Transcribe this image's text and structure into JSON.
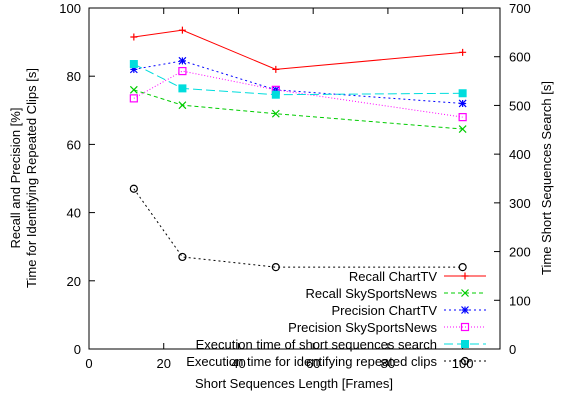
{
  "chart_data": {
    "type": "line",
    "title": "",
    "xlabel": "Short Sequences Length [Frames]",
    "ylabel_left": [
      "Recall and Precision [%]",
      "Time for Identifying Repeated Clips [s]"
    ],
    "ylabel_right": "Time Short Sequences Search [s]",
    "xlim": [
      0,
      110
    ],
    "ylim_left": [
      0,
      100
    ],
    "ylim_right": [
      0,
      700
    ],
    "x_ticks": [
      0,
      20,
      40,
      60,
      80,
      100
    ],
    "y_ticks_left": [
      0,
      20,
      40,
      60,
      80,
      100
    ],
    "y_ticks_right": [
      0,
      100,
      200,
      300,
      400,
      500,
      600,
      700
    ],
    "x_tick_labels": [
      "0",
      "20",
      "40",
      "60",
      "80",
      "100"
    ],
    "y_tick_labels_left": [
      "0",
      "20",
      "40",
      "60",
      "80",
      "100"
    ],
    "y_tick_labels_right": [
      "0",
      "100",
      "200",
      "300",
      "400",
      "500",
      "600",
      "700"
    ],
    "grid": false,
    "legend_position": "bottom-right",
    "series": [
      {
        "name": "Recall ChartTV",
        "axis": "left",
        "x": [
          12,
          25,
          50,
          100
        ],
        "values": [
          91.5,
          93.5,
          82,
          87
        ],
        "color": "#ff0000",
        "marker": "plus",
        "dash": ""
      },
      {
        "name": "Recall SkySportsNews",
        "axis": "left",
        "x": [
          12,
          25,
          50,
          100
        ],
        "values": [
          76,
          71.5,
          69,
          64.5
        ],
        "color": "#00cc00",
        "marker": "x",
        "dash": "4,3"
      },
      {
        "name": "Precision ChartTV",
        "axis": "left",
        "x": [
          12,
          25,
          50,
          100
        ],
        "values": [
          82,
          84.5,
          76,
          72
        ],
        "color": "#0000ff",
        "marker": "star",
        "dash": "2,3"
      },
      {
        "name": "Precision SkySportsNews",
        "axis": "left",
        "x": [
          12,
          25,
          50,
          100
        ],
        "values": [
          73.5,
          81.5,
          76,
          68
        ],
        "color": "#ff00ff",
        "marker": "square-open",
        "dash": "1,2"
      },
      {
        "name": "Execution time of short sequences search",
        "axis": "right",
        "x": [
          12,
          25,
          50,
          100
        ],
        "values": [
          585,
          535,
          522,
          525
        ],
        "color": "#00dddd",
        "marker": "square-filled",
        "dash": "9,4"
      },
      {
        "name": "Execution time for identifying repeated clips",
        "axis": "left",
        "x": [
          12,
          25,
          50,
          100
        ],
        "values": [
          47,
          27,
          24,
          24
        ],
        "color": "#000000",
        "marker": "circle-open",
        "dash": "2,3"
      }
    ]
  }
}
